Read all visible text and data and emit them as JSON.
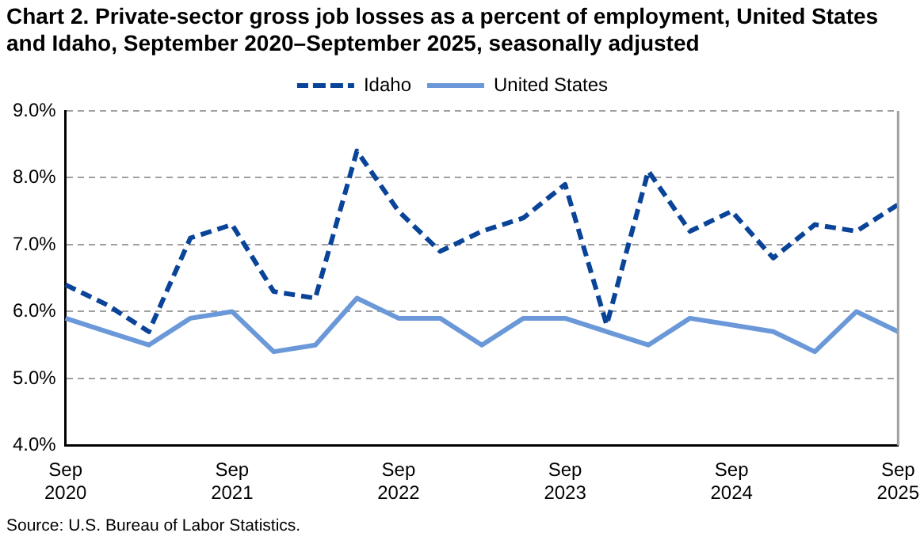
{
  "chart_data": {
    "type": "line",
    "title": "Chart 2. Private-sector gross job losses as a percent of employment, United States and Idaho, September 2020–September 2025, seasonally adjusted",
    "categories": [
      "Sep 2020",
      null,
      null,
      null,
      "Sep 2021",
      null,
      null,
      null,
      "Sep 2022",
      null,
      null,
      null,
      "Sep 2023",
      null,
      null,
      null,
      "Sep 2024",
      null,
      null,
      null,
      "Sep 2025"
    ],
    "series": [
      {
        "name": "Idaho",
        "color": "#0a4499",
        "line_style": "dashed",
        "values": [
          6.4,
          6.1,
          5.7,
          7.1,
          7.3,
          6.3,
          6.2,
          8.4,
          7.5,
          6.9,
          7.2,
          7.4,
          7.9,
          5.8,
          8.1,
          7.2,
          7.5,
          6.8,
          7.3,
          7.2,
          7.6
        ]
      },
      {
        "name": "United States",
        "color": "#6a98d8",
        "line_style": "solid",
        "values": [
          5.9,
          5.7,
          5.5,
          5.9,
          6.0,
          5.4,
          5.5,
          6.2,
          5.9,
          5.9,
          5.5,
          5.9,
          5.9,
          5.7,
          5.5,
          5.9,
          5.8,
          5.7,
          5.4,
          6.0,
          5.7
        ]
      }
    ],
    "ylim": [
      4,
      9
    ],
    "yticks": [
      {
        "value": 4,
        "label": "4.0%"
      },
      {
        "value": 5,
        "label": "5.0%"
      },
      {
        "value": 6,
        "label": "6.0%"
      },
      {
        "value": 7,
        "label": "7.0%"
      },
      {
        "value": 8,
        "label": "8.0%"
      },
      {
        "value": 9,
        "label": "9.0%"
      }
    ],
    "grid": "y",
    "legend": "top",
    "marker": "none",
    "annotations": [
      "Source: U.S. Bureau of Labor Statistics."
    ]
  }
}
